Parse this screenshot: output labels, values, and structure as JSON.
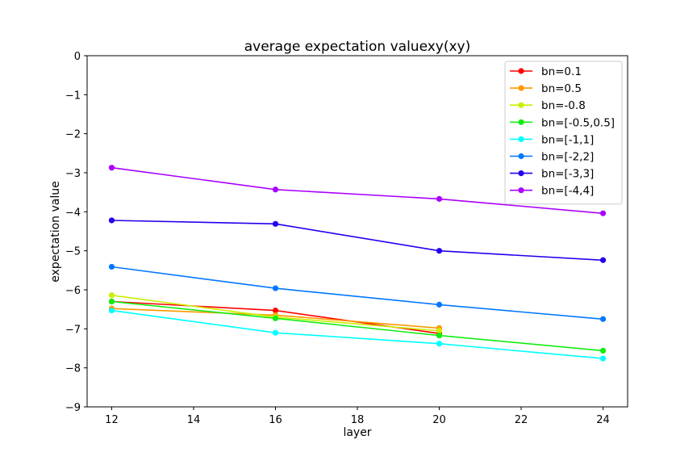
{
  "chart_data": {
    "type": "line",
    "title": "average expectation valuexy(xy)",
    "xlabel": "layer",
    "ylabel": "expectation value",
    "xlim": [
      11.4,
      24.6
    ],
    "ylim": [
      -9,
      0
    ],
    "xticks": [
      12,
      14,
      16,
      18,
      20,
      22,
      24
    ],
    "yticks": [
      0,
      -1,
      -2,
      -3,
      -4,
      -5,
      -6,
      -7,
      -8,
      -9
    ],
    "ytick_labels": [
      "0",
      "−1",
      "−2",
      "−3",
      "−4",
      "−5",
      "−6",
      "−7",
      "−8",
      "−9"
    ],
    "grid": false,
    "legend_position": "top-right",
    "series": [
      {
        "name": "bn=0.1",
        "color": "#ff0000",
        "x": [
          12,
          16,
          20
        ],
        "y": [
          -6.3,
          -6.53,
          -7.12
        ]
      },
      {
        "name": "bn=0.5",
        "color": "#ff9900",
        "x": [
          12,
          16,
          20
        ],
        "y": [
          -6.48,
          -6.65,
          -6.98
        ]
      },
      {
        "name": "bn=-0.8",
        "color": "#ccee00",
        "x": [
          12,
          16,
          20
        ],
        "y": [
          -6.14,
          -6.7,
          -7.05
        ]
      },
      {
        "name": "bn=[-0.5,0.5]",
        "color": "#11ee11",
        "x": [
          12,
          16,
          20,
          24
        ],
        "y": [
          -6.3,
          -6.73,
          -7.17,
          -7.56
        ]
      },
      {
        "name": "bn=[-1,1]",
        "color": "#00ffff",
        "x": [
          12,
          16,
          20,
          24
        ],
        "y": [
          -6.53,
          -7.1,
          -7.38,
          -7.76
        ]
      },
      {
        "name": "bn=[-2,2]",
        "color": "#0077ff",
        "x": [
          12,
          16,
          20,
          24
        ],
        "y": [
          -5.41,
          -5.96,
          -6.38,
          -6.75
        ]
      },
      {
        "name": "bn=[-3,3]",
        "color": "#2200ee",
        "x": [
          12,
          16,
          20,
          24
        ],
        "y": [
          -4.22,
          -4.31,
          -5.0,
          -5.24
        ]
      },
      {
        "name": "bn=[-4,4]",
        "color": "#aa00ff",
        "x": [
          12,
          16,
          20,
          24
        ],
        "y": [
          -2.87,
          -3.43,
          -3.67,
          -4.04
        ]
      }
    ]
  }
}
